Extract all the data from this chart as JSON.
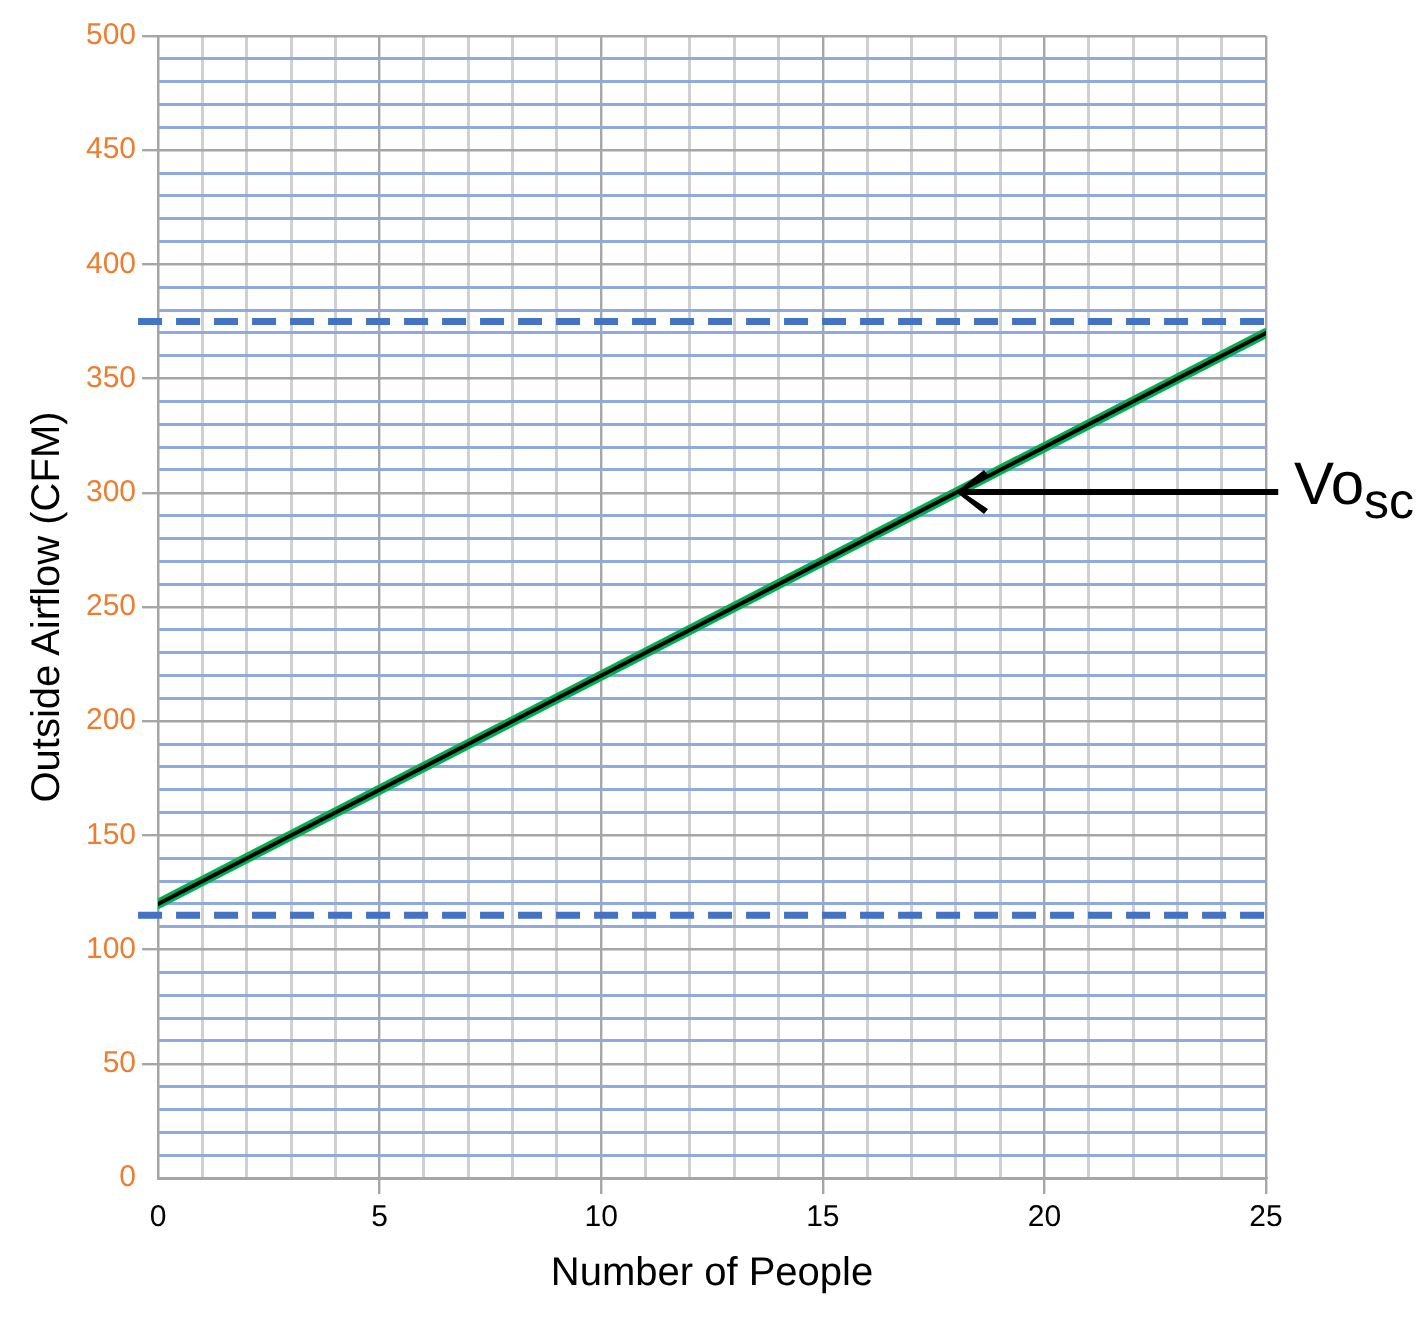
{
  "chart_data": {
    "type": "line",
    "xlabel": "Number of People",
    "ylabel": "Outside Airflow (CFM)",
    "xlim": [
      0,
      25
    ],
    "xticks": [
      0,
      {
        "value": 1,
        "label": null
      },
      {
        "value": 2,
        "label": null
      },
      {
        "value": 3,
        "label": null
      },
      {
        "value": 4,
        "label": null
      },
      5,
      {
        "value": 6,
        "label": null
      },
      {
        "value": 7,
        "label": null
      },
      {
        "value": 8,
        "label": null
      },
      {
        "value": 9,
        "label": null
      },
      10,
      {
        "value": 11,
        "label": null
      },
      {
        "value": 12,
        "label": null
      },
      {
        "value": 13,
        "label": null
      },
      {
        "value": 14,
        "label": null
      },
      15,
      {
        "value": 16,
        "label": null
      },
      {
        "value": 17,
        "label": null
      },
      {
        "value": 18,
        "label": null
      },
      {
        "value": 19,
        "label": null
      },
      20,
      {
        "value": 21,
        "label": null
      },
      {
        "value": 22,
        "label": null
      },
      {
        "value": 23,
        "label": null
      },
      {
        "value": 24,
        "label": null
      },
      25
    ],
    "ylim": [
      0,
      500
    ],
    "yticks": [
      0,
      {
        "value": 10,
        "label": null
      },
      {
        "value": 20,
        "label": null
      },
      {
        "value": 30,
        "label": null
      },
      {
        "value": 40,
        "label": null
      },
      50,
      {
        "value": 60,
        "label": null
      },
      {
        "value": 70,
        "label": null
      },
      {
        "value": 80,
        "label": null
      },
      {
        "value": 90,
        "label": null
      },
      100,
      {
        "value": 110,
        "label": null
      },
      {
        "value": 120,
        "label": null
      },
      {
        "value": 130,
        "label": null
      },
      {
        "value": 140,
        "label": null
      },
      150,
      {
        "value": 160,
        "label": null
      },
      {
        "value": 170,
        "label": null
      },
      {
        "value": 180,
        "label": null
      },
      {
        "value": 190,
        "label": null
      },
      200,
      {
        "value": 210,
        "label": null
      },
      {
        "value": 220,
        "label": null
      },
      {
        "value": 230,
        "label": null
      },
      {
        "value": 240,
        "label": null
      },
      250,
      {
        "value": 260,
        "label": null
      },
      {
        "value": 270,
        "label": null
      },
      {
        "value": 280,
        "label": null
      },
      {
        "value": 290,
        "label": null
      },
      300,
      {
        "value": 310,
        "label": null
      },
      {
        "value": 320,
        "label": null
      },
      {
        "value": 330,
        "label": null
      },
      {
        "value": 340,
        "label": null
      },
      350,
      {
        "value": 360,
        "label": null
      },
      {
        "value": 370,
        "label": null
      },
      {
        "value": 380,
        "label": null
      },
      {
        "value": 390,
        "label": null
      },
      400,
      {
        "value": 410,
        "label": null
      },
      {
        "value": 420,
        "label": null
      },
      {
        "value": 430,
        "label": null
      },
      {
        "value": 440,
        "label": null
      },
      450,
      {
        "value": 460,
        "label": null
      },
      {
        "value": 470,
        "label": null
      },
      {
        "value": 480,
        "label": null
      },
      {
        "value": 490,
        "label": null
      },
      500
    ],
    "grid": true,
    "legend": false,
    "marker": "none",
    "line_style": "solid",
    "x": [
      0,
      25
    ],
    "series": [
      {
        "color": "#00b050",
        "values": [
          120,
          370
        ]
      },
      {
        "color": "#000000",
        "values": [
          120,
          370
        ]
      }
    ],
    "ref_lines": [
      {
        "axis": "y",
        "value": 375,
        "color": "#4472c4",
        "line_style": "dashed"
      },
      {
        "axis": "y",
        "value": 115,
        "color": "#4472c4",
        "line_style": "dashed"
      }
    ],
    "annotations": [
      "Vo$_{sc}$"
    ]
  }
}
